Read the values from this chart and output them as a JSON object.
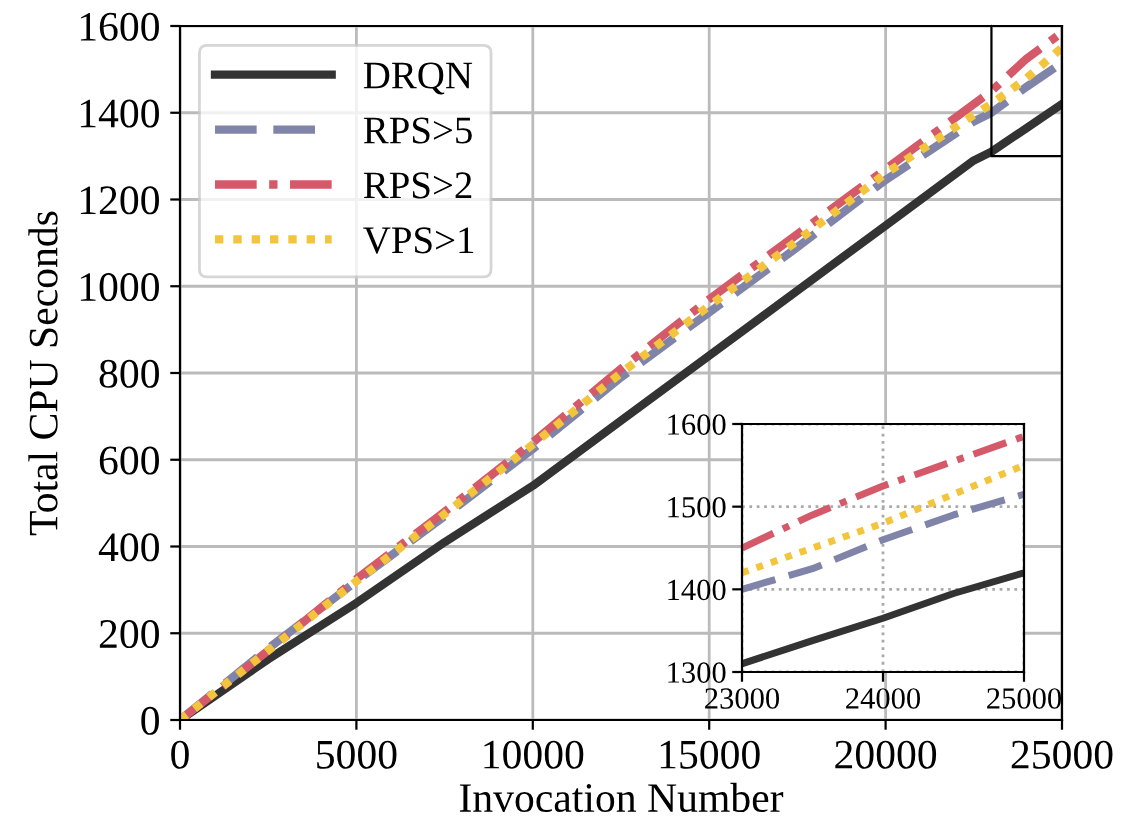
{
  "chart_data": [
    {
      "type": "line",
      "xlabel": "Invocation Number",
      "ylabel": "Total CPU Seconds",
      "x": [
        0,
        2500,
        5000,
        7500,
        10000,
        12500,
        15000,
        17500,
        20000,
        22500,
        23000,
        24000,
        25000
      ],
      "series": [
        {
          "name": "DRQN",
          "color": "#333333",
          "line_style": "solid",
          "values": [
            0,
            140,
            270,
            410,
            540,
            690,
            840,
            990,
            1140,
            1290,
            1310,
            1365,
            1420
          ]
        },
        {
          "name": "RPS>5",
          "color": "#7f84a8",
          "line_style": "dashed",
          "values": [
            0,
            165,
            320,
            470,
            625,
            790,
            940,
            1090,
            1245,
            1380,
            1400,
            1460,
            1515
          ]
        },
        {
          "name": "RPS>2",
          "color": "#d45a6a",
          "line_style": "dashdot",
          "values": [
            0,
            160,
            325,
            480,
            640,
            810,
            970,
            1120,
            1270,
            1420,
            1450,
            1525,
            1585
          ]
        },
        {
          "name": "VPS>1",
          "color": "#f2c53d",
          "line_style": "dotted",
          "values": [
            0,
            160,
            320,
            475,
            635,
            800,
            955,
            1105,
            1260,
            1395,
            1420,
            1480,
            1550
          ]
        }
      ],
      "xlim": [
        0,
        25000
      ],
      "xticks": [
        0,
        5000,
        10000,
        15000,
        20000,
        25000
      ],
      "ylim": [
        0,
        1600
      ],
      "yticks": [
        0,
        200,
        400,
        600,
        800,
        1000,
        1200,
        1400,
        1600
      ],
      "grid": true,
      "legend": "top left"
    },
    {
      "type": "line",
      "x": [
        23000,
        23500,
        24000,
        24500,
        25000
      ],
      "series": [
        {
          "color": "#333333",
          "line_style": "solid",
          "values": [
            1310,
            1338,
            1365,
            1395,
            1420
          ]
        },
        {
          "color": "#7f84a8",
          "line_style": "dashed",
          "values": [
            1400,
            1425,
            1460,
            1490,
            1515
          ]
        },
        {
          "color": "#d45a6a",
          "line_style": "dashdot",
          "values": [
            1450,
            1490,
            1525,
            1555,
            1585
          ]
        },
        {
          "color": "#f2c53d",
          "line_style": "dotted",
          "values": [
            1420,
            1450,
            1480,
            1515,
            1550
          ]
        }
      ],
      "xlim": [
        23000,
        25000
      ],
      "xticks": [
        23000,
        24000,
        25000
      ],
      "ylim": [
        1300,
        1600
      ],
      "yticks": [
        1300,
        1400,
        1500,
        1600
      ],
      "grid": true
    }
  ]
}
